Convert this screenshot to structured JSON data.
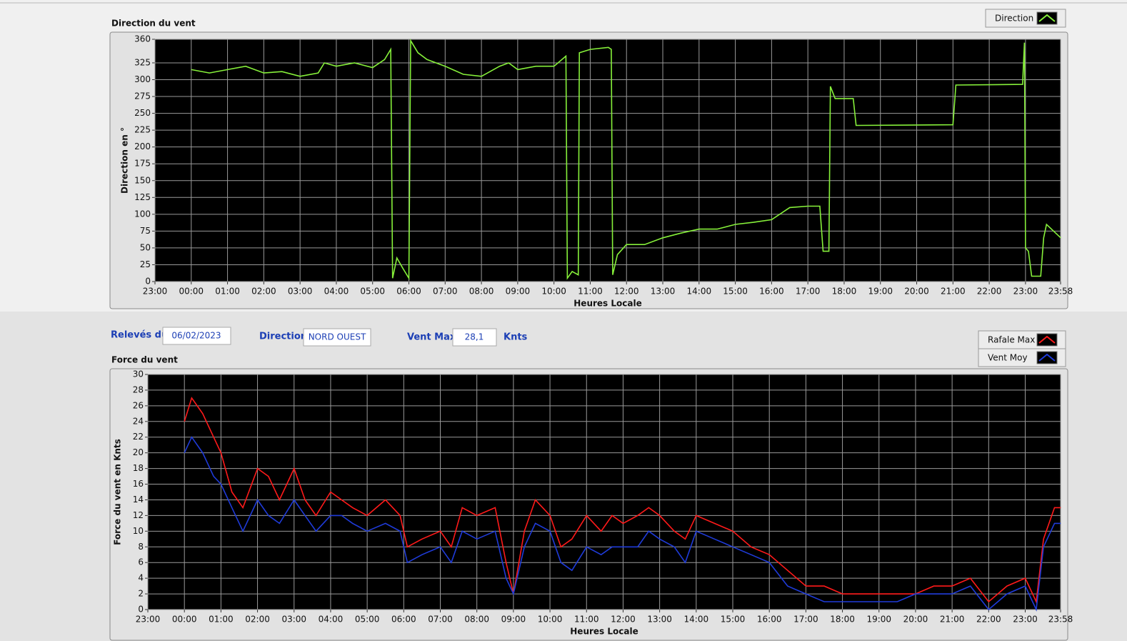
{
  "chart_data": [
    {
      "type": "line",
      "title": "Direction du vent",
      "xlabel": "Heures Locale",
      "ylabel": "Direction en °",
      "x": [
        1.0,
        1.5,
        2.0,
        2.5,
        3.0,
        3.5,
        4.0,
        4.5,
        4.67,
        5.0,
        5.5,
        6.0,
        6.33,
        6.5,
        6.55,
        6.67,
        6.83,
        7.0,
        7.05,
        7.25,
        7.5,
        8.0,
        8.5,
        9.0,
        9.5,
        9.75,
        10.0,
        10.5,
        11.0,
        11.33,
        11.37,
        11.5,
        11.67,
        11.7,
        12.0,
        12.5,
        12.58,
        12.62,
        12.75,
        13.0,
        13.5,
        14.0,
        14.5,
        15.0,
        15.5,
        16.0,
        16.5,
        17.0,
        17.5,
        18.0,
        18.33,
        18.42,
        18.58,
        18.62,
        18.75,
        19.25,
        19.33,
        22.0,
        22.08,
        23.92,
        23.97,
        24.0,
        24.08,
        24.17,
        24.42,
        24.5,
        24.58,
        24.97
      ],
      "series": [
        {
          "name": "Direction",
          "color": "#86f03a",
          "values": [
            315,
            310,
            315,
            320,
            310,
            312,
            305,
            310,
            325,
            320,
            325,
            318,
            330,
            345,
            5,
            35,
            20,
            5,
            358,
            340,
            330,
            320,
            308,
            305,
            320,
            325,
            315,
            320,
            320,
            335,
            5,
            15,
            10,
            340,
            345,
            348,
            345,
            10,
            40,
            55,
            55,
            65,
            72,
            78,
            78,
            85,
            88,
            92,
            110,
            112,
            112,
            45,
            45,
            290,
            272,
            272,
            232,
            233,
            292,
            293,
            355,
            50,
            45,
            8,
            8,
            65,
            85,
            65
          ]
        }
      ],
      "xlim": [
        0,
        24.967
      ],
      "ylim": [
        0,
        360
      ],
      "xticks": [
        {
          "value": 0,
          "label": "23:00"
        },
        {
          "value": 1,
          "label": "00:00"
        },
        {
          "value": 2,
          "label": "01:00"
        },
        {
          "value": 3,
          "label": "02:00"
        },
        {
          "value": 4,
          "label": "03:00"
        },
        {
          "value": 5,
          "label": "04:00"
        },
        {
          "value": 6,
          "label": "05:00"
        },
        {
          "value": 7,
          "label": "06:00"
        },
        {
          "value": 8,
          "label": "07:00"
        },
        {
          "value": 9,
          "label": "08:00"
        },
        {
          "value": 10,
          "label": "09:00"
        },
        {
          "value": 11,
          "label": "10:00"
        },
        {
          "value": 12,
          "label": "11:00"
        },
        {
          "value": 13,
          "label": "12:00"
        },
        {
          "value": 14,
          "label": "13:00"
        },
        {
          "value": 15,
          "label": "14:00"
        },
        {
          "value": 16,
          "label": "15:00"
        },
        {
          "value": 17,
          "label": "16:00"
        },
        {
          "value": 18,
          "label": "17:00"
        },
        {
          "value": 19,
          "label": "18:00"
        },
        {
          "value": 20,
          "label": "19:00"
        },
        {
          "value": 21,
          "label": "20:00"
        },
        {
          "value": 22,
          "label": "21:00"
        },
        {
          "value": 23,
          "label": "22:00"
        },
        {
          "value": 24,
          "label": "23:00"
        },
        {
          "value": 24.967,
          "label": "23:58"
        }
      ],
      "yticks": [
        0,
        25,
        50,
        75,
        100,
        125,
        150,
        175,
        200,
        225,
        250,
        275,
        300,
        325,
        360
      ],
      "grid": true
    },
    {
      "type": "line",
      "title": "Force du vent",
      "xlabel": "Heures Locale",
      "ylabel": "Force du vent en Knts",
      "x": [
        1.0,
        1.2,
        1.5,
        1.8,
        2.0,
        2.3,
        2.6,
        3.0,
        3.3,
        3.6,
        4.0,
        4.3,
        4.6,
        5.0,
        5.3,
        5.6,
        6.0,
        6.5,
        6.9,
        7.1,
        7.5,
        8.0,
        8.3,
        8.6,
        9.0,
        9.5,
        9.8,
        10.0,
        10.3,
        10.6,
        11.0,
        11.3,
        11.6,
        12.0,
        12.4,
        12.7,
        13.0,
        13.4,
        13.7,
        14.0,
        14.4,
        14.7,
        15.0,
        15.5,
        16.0,
        16.5,
        17.0,
        17.5,
        18.0,
        18.5,
        19.0,
        19.5,
        20.0,
        20.5,
        21.0,
        21.5,
        22.0,
        22.5,
        23.0,
        23.5,
        24.0,
        24.3,
        24.5,
        24.8,
        24.97
      ],
      "series": [
        {
          "name": "Rafale Max",
          "color": "#ff1a1a",
          "values": [
            24,
            27,
            25,
            22,
            20,
            15,
            13,
            18,
            17,
            14,
            18,
            14,
            12,
            15,
            14,
            13,
            12,
            14,
            12,
            8,
            9,
            10,
            8,
            13,
            12,
            13,
            6,
            2,
            10,
            14,
            12,
            8,
            9,
            12,
            10,
            12,
            11,
            12,
            13,
            12,
            10,
            9,
            12,
            11,
            10,
            8,
            7,
            5,
            3,
            3,
            2,
            2,
            2,
            2,
            2,
            3,
            3,
            4,
            1,
            3,
            4,
            1,
            9,
            13,
            13
          ]
        },
        {
          "name": "Vent Moy",
          "color": "#1f3bd9",
          "values": [
            20,
            22,
            20,
            17,
            16,
            13,
            10,
            14,
            12,
            11,
            14,
            12,
            10,
            12,
            12,
            11,
            10,
            11,
            10,
            6,
            7,
            8,
            6,
            10,
            9,
            10,
            4,
            2,
            8,
            11,
            10,
            6,
            5,
            8,
            7,
            8,
            8,
            8,
            10,
            9,
            8,
            6,
            10,
            9,
            8,
            7,
            6,
            3,
            2,
            1,
            1,
            1,
            1,
            1,
            2,
            2,
            2,
            3,
            0,
            2,
            3,
            0,
            8,
            11,
            11
          ]
        }
      ],
      "xlim": [
        0,
        24.967
      ],
      "ylim": [
        0,
        30
      ],
      "xticks": [
        {
          "value": 0,
          "label": "23:00"
        },
        {
          "value": 1,
          "label": "00:00"
        },
        {
          "value": 2,
          "label": "01:00"
        },
        {
          "value": 3,
          "label": "02:00"
        },
        {
          "value": 4,
          "label": "03:00"
        },
        {
          "value": 5,
          "label": "04:00"
        },
        {
          "value": 6,
          "label": "05:00"
        },
        {
          "value": 7,
          "label": "06:00"
        },
        {
          "value": 8,
          "label": "07:00"
        },
        {
          "value": 9,
          "label": "08:00"
        },
        {
          "value": 10,
          "label": "09:00"
        },
        {
          "value": 11,
          "label": "10:00"
        },
        {
          "value": 12,
          "label": "11:00"
        },
        {
          "value": 13,
          "label": "12:00"
        },
        {
          "value": 14,
          "label": "13:00"
        },
        {
          "value": 15,
          "label": "14:00"
        },
        {
          "value": 16,
          "label": "15:00"
        },
        {
          "value": 17,
          "label": "16:00"
        },
        {
          "value": 18,
          "label": "17:00"
        },
        {
          "value": 19,
          "label": "18:00"
        },
        {
          "value": 20,
          "label": "19:00"
        },
        {
          "value": 21,
          "label": "20:00"
        },
        {
          "value": 22,
          "label": "21:00"
        },
        {
          "value": 23,
          "label": "22:00"
        },
        {
          "value": 24,
          "label": "23:00"
        },
        {
          "value": 24.967,
          "label": "23:58"
        }
      ],
      "yticks": [
        0,
        2,
        4,
        6,
        8,
        10,
        12,
        14,
        16,
        18,
        20,
        22,
        24,
        26,
        28,
        30
      ],
      "grid": true
    }
  ],
  "controls": {
    "date_label": "Relevés du",
    "date": "06/02/2023",
    "direction_label": "Direction",
    "direction": "NORD OUEST",
    "wind_max_label": "Vent Max",
    "wind_max": "28,1",
    "unit": "Knts"
  }
}
